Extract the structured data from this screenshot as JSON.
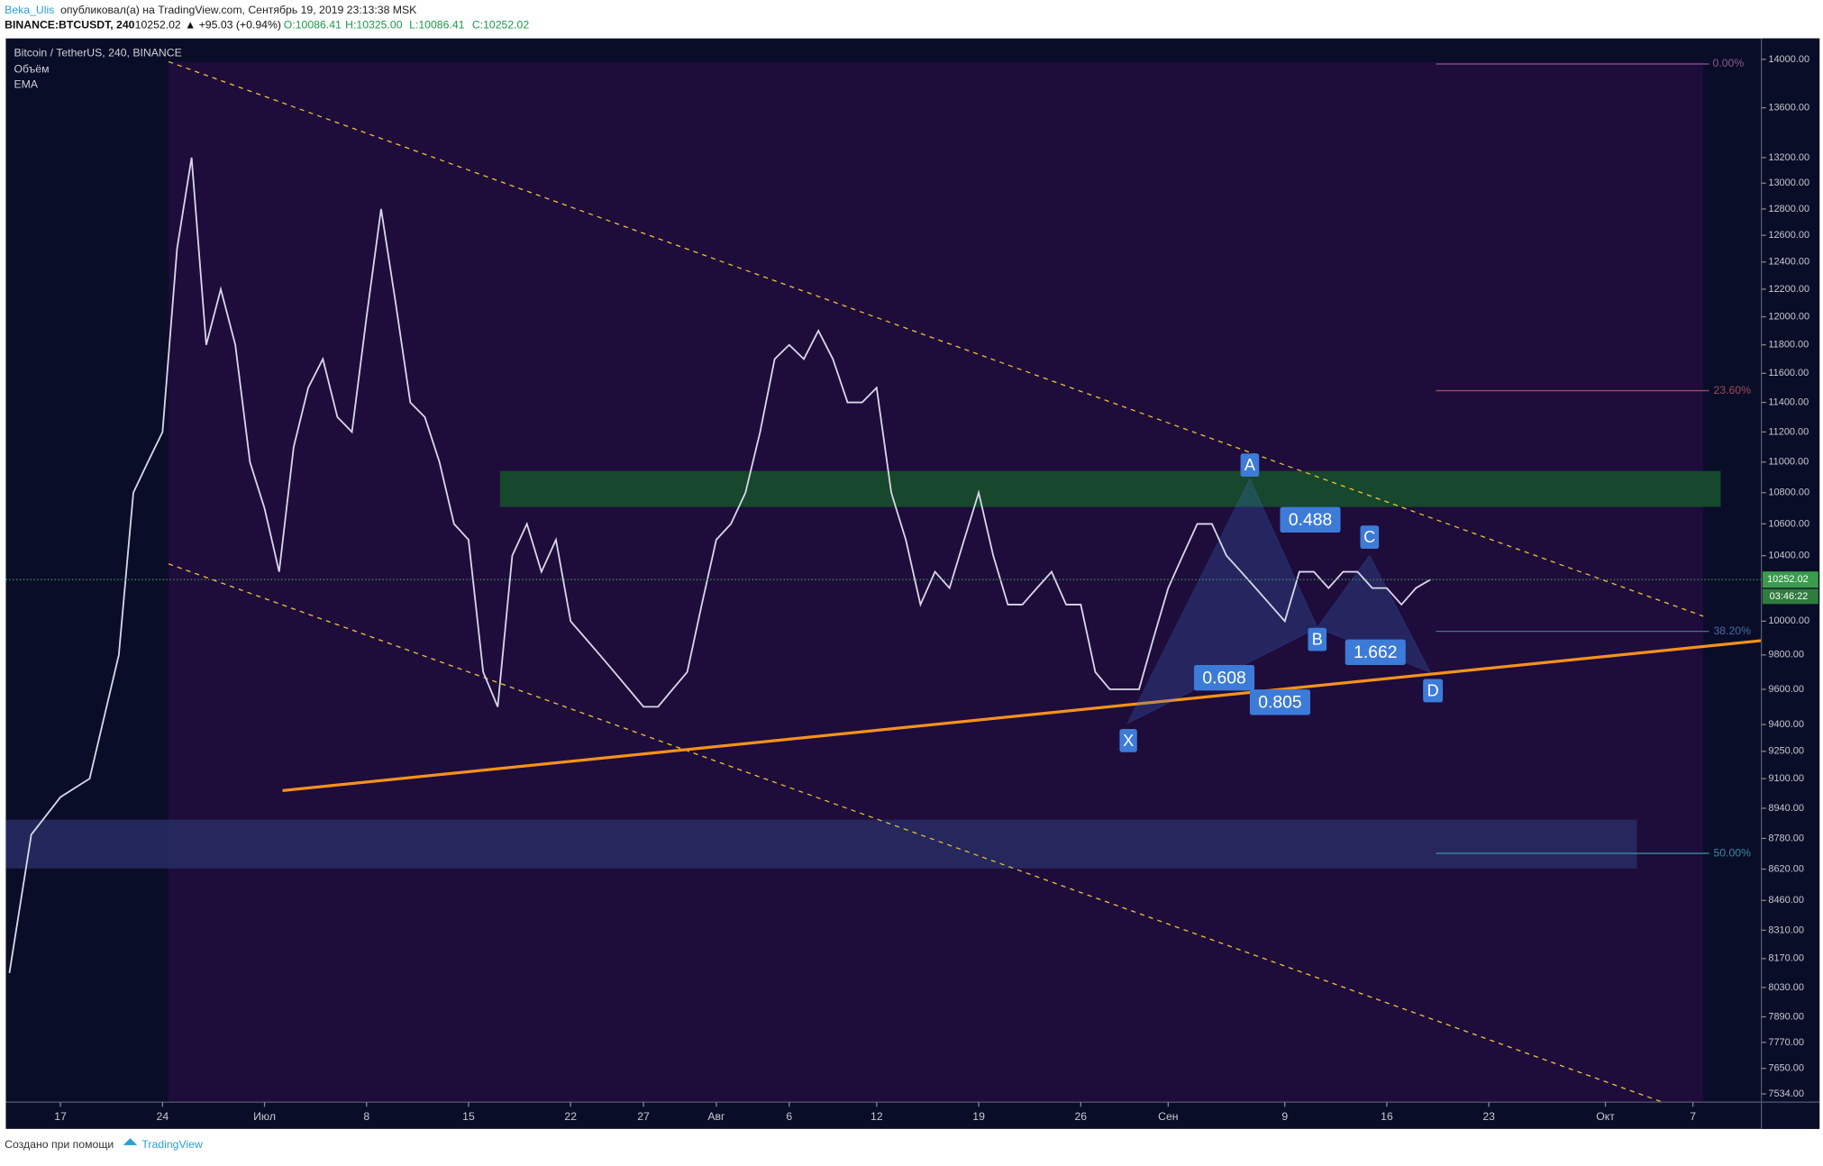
{
  "header": {
    "author": "Beka_Ulis",
    "published": "опубликовал(а) на TradingView.com, Сентябрь 19, 2019 23:13:38 MSK"
  },
  "symbol_line": {
    "symbol": "BINANCE:BTCUSDT, 240",
    "last": "10252.02",
    "change": "▲ +95.03 (+0.94%)",
    "open": "O:10086.41",
    "high": "H:10325.00",
    "low": "L:10086.41",
    "close": "C:10252.02"
  },
  "legend": {
    "name": "Bitcoin / TetherUS, 240, BINANCE",
    "volume": "Объём",
    "ema": "EMA"
  },
  "fib_levels": [
    "0.00%",
    "23.60%",
    "38.20%",
    "50.00%"
  ],
  "pattern": {
    "points": [
      "X",
      "A",
      "B",
      "C",
      "D"
    ],
    "ratios": [
      "0.488",
      "1.662",
      "0.608",
      "0.805"
    ]
  },
  "countdown": "03:46:22",
  "footer": {
    "text": "Создано при помощи",
    "brand": "TradingView"
  },
  "chart_data": {
    "type": "line",
    "log_scale": true,
    "color": "#d8d8e8",
    "last_price": 10252.02,
    "xlim": [
      164.25,
      284.7
    ],
    "ylim": [
      7497,
      14177
    ],
    "xticks": [
      {
        "value": 168,
        "label": "17"
      },
      {
        "value": 175,
        "label": "24"
      },
      {
        "value": 182,
        "label": "Июл"
      },
      {
        "value": 189,
        "label": "8"
      },
      {
        "value": 196,
        "label": "15"
      },
      {
        "value": 203,
        "label": "22"
      },
      {
        "value": 208,
        "label": "27"
      },
      {
        "value": 213,
        "label": "Авг"
      },
      {
        "value": 218,
        "label": "6"
      },
      {
        "value": 224,
        "label": "12"
      },
      {
        "value": 231,
        "label": "19"
      },
      {
        "value": 238,
        "label": "26"
      },
      {
        "value": 244,
        "label": "Сен"
      },
      {
        "value": 252,
        "label": "9"
      },
      {
        "value": 259,
        "label": "16"
      },
      {
        "value": 266,
        "label": "23"
      },
      {
        "value": 274,
        "label": "Окт"
      },
      {
        "value": 280,
        "label": "7"
      }
    ],
    "yticks": [
      {
        "value": 14000,
        "label": "14000.00"
      },
      {
        "value": 13600,
        "label": "13600.00"
      },
      {
        "value": 13200,
        "label": "13200.00"
      },
      {
        "value": 13000,
        "label": "13000.00"
      },
      {
        "value": 12800,
        "label": "12800.00"
      },
      {
        "value": 12600,
        "label": "12600.00"
      },
      {
        "value": 12400,
        "label": "12400.00"
      },
      {
        "value": 12200,
        "label": "12200.00"
      },
      {
        "value": 12000,
        "label": "12000.00"
      },
      {
        "value": 11800,
        "label": "11800.00"
      },
      {
        "value": 11600,
        "label": "11600.00"
      },
      {
        "value": 11400,
        "label": "11400.00"
      },
      {
        "value": 11200,
        "label": "11200.00"
      },
      {
        "value": 11000,
        "label": "11000.00"
      },
      {
        "value": 10800,
        "label": "10800.00"
      },
      {
        "value": 10600,
        "label": "10600.00"
      },
      {
        "value": 10400,
        "label": "10400.00"
      },
      {
        "value": 10000,
        "label": "10000.00"
      },
      {
        "value": 9800,
        "label": "9800.00"
      },
      {
        "value": 9600,
        "label": "9600.00"
      },
      {
        "value": 9400,
        "label": "9400.00"
      },
      {
        "value": 9250,
        "label": "9250.00"
      },
      {
        "value": 9100,
        "label": "9100.00"
      },
      {
        "value": 8940,
        "label": "8940.00"
      },
      {
        "value": 8780,
        "label": "8780.00"
      },
      {
        "value": 8620,
        "label": "8620.00"
      },
      {
        "value": 8460,
        "label": "8460.00"
      },
      {
        "value": 8310,
        "label": "8310.00"
      },
      {
        "value": 8170,
        "label": "8170.00"
      },
      {
        "value": 8030,
        "label": "8030.00"
      },
      {
        "value": 7890,
        "label": "7890.00"
      },
      {
        "value": 7770,
        "label": "7770.00"
      },
      {
        "value": 7650,
        "label": "7650.00"
      },
      {
        "value": 7534,
        "label": "7534.00"
      }
    ],
    "x": [
      164.5,
      166,
      168,
      170,
      172,
      173,
      174,
      175,
      176,
      177,
      178,
      179,
      180,
      181,
      182,
      183,
      184,
      185,
      186,
      187,
      188,
      189,
      190,
      191,
      192,
      193,
      194,
      195,
      196,
      197,
      198,
      199,
      200,
      201,
      202,
      203,
      204,
      205,
      206,
      207,
      208,
      209,
      210,
      211,
      212,
      213,
      214,
      215,
      216,
      217,
      218,
      219,
      220,
      221,
      222,
      223,
      224,
      225,
      226,
      227,
      228,
      229,
      230,
      231,
      232,
      233,
      234,
      235,
      236,
      237,
      238,
      239,
      240,
      241,
      242,
      243,
      244,
      245,
      246,
      247,
      248,
      249,
      250,
      251,
      252,
      253,
      254,
      255,
      256,
      257,
      258,
      259,
      260,
      261,
      262
    ],
    "values": [
      8100,
      8800,
      9000,
      9100,
      9800,
      10800,
      11000,
      11200,
      12500,
      13200,
      11800,
      12200,
      11800,
      11000,
      10700,
      10300,
      11100,
      11500,
      11700,
      11300,
      11200,
      12000,
      12800,
      12100,
      11400,
      11300,
      11000,
      10600,
      10500,
      9700,
      9500,
      10400,
      10600,
      10300,
      10500,
      10000,
      9900,
      9800,
      9700,
      9600,
      9500,
      9500,
      9600,
      9700,
      10100,
      10500,
      10600,
      10800,
      11200,
      11700,
      11800,
      11700,
      11900,
      11700,
      11400,
      11400,
      11500,
      10800,
      10500,
      10100,
      10300,
      10200,
      10500,
      10800,
      10400,
      10100,
      10100,
      10200,
      10300,
      10100,
      10100,
      9700,
      9600,
      9600,
      9600,
      9900,
      10200,
      10400,
      10600,
      10600,
      10400,
      10300,
      10200,
      10100,
      10000,
      10300,
      10300,
      10200,
      10300,
      10300,
      10200,
      10200,
      10100,
      10200,
      10252
    ]
  }
}
